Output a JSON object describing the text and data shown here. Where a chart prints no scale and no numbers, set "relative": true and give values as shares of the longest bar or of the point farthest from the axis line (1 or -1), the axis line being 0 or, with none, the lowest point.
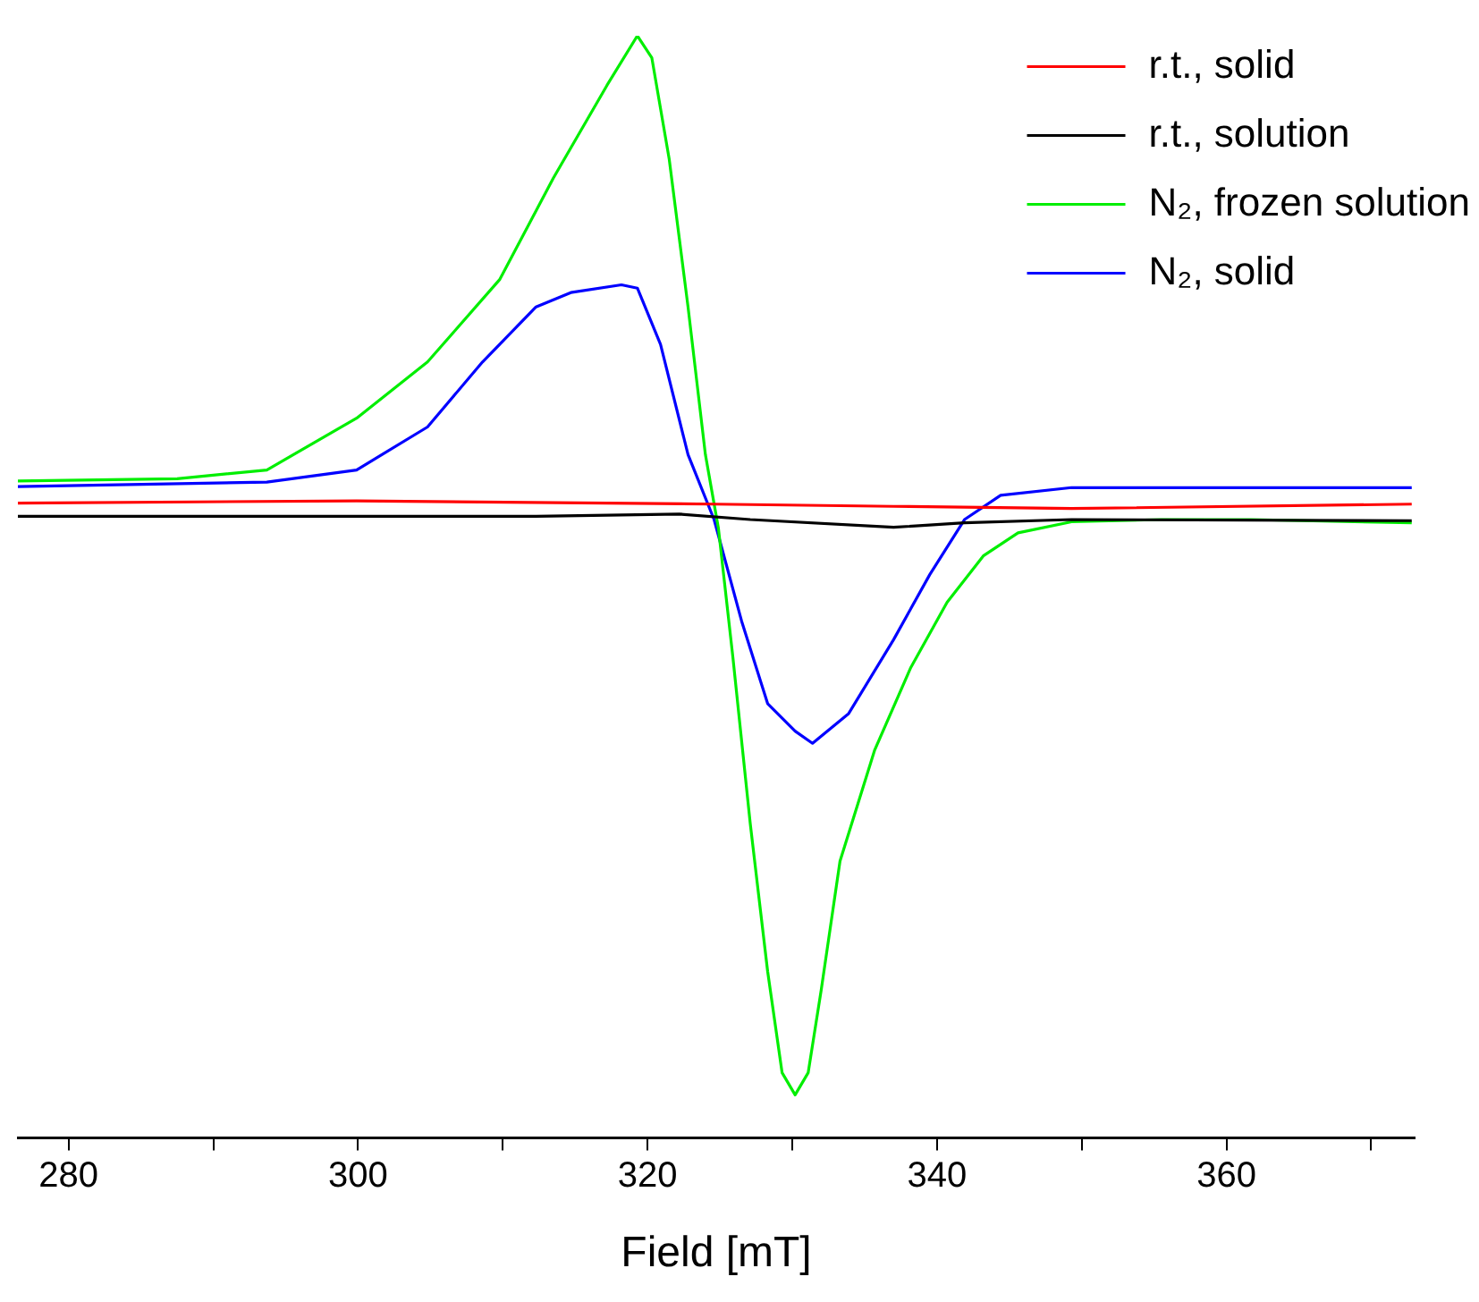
{
  "chart_data": {
    "type": "line",
    "xlabel": "Field [mT]",
    "relative": true,
    "xlim": [
      276.5,
      373
    ],
    "xticks": [
      280,
      {
        "value": 290,
        "label": null
      },
      300,
      {
        "value": 310,
        "label": null
      },
      320,
      {
        "value": 330,
        "label": null
      },
      340,
      {
        "value": 350,
        "label": null
      },
      360,
      {
        "value": 370,
        "label": null
      }
    ],
    "grid": false,
    "legend": "top right",
    "marker": "none",
    "line_style": "solid",
    "series": [
      {
        "name": "r.t., solid",
        "color": "#ff0000",
        "x": [
          276.5,
          299.9,
          324.6,
          337.0,
          349.3,
          372.8
        ],
        "values": [
          0.576,
          0.578,
          0.575,
          0.573,
          0.571,
          0.575
        ]
      },
      {
        "name": "r.t., solution",
        "color": "#000000",
        "x": [
          276.5,
          312.3,
          322.2,
          327.1,
          337.0,
          341.9,
          349.3,
          372.8
        ],
        "values": [
          0.564,
          0.564,
          0.566,
          0.561,
          0.554,
          0.558,
          0.561,
          0.56
        ]
      },
      {
        "name": "N₂, frozen solution",
        "color": "#00ee00",
        "x": [
          276.5,
          287.5,
          293.7,
          299.9,
          304.8,
          309.8,
          313.5,
          317.2,
          319.3,
          320.3,
          321.5,
          322.8,
          324.0,
          324.9,
          325.9,
          327.1,
          328.3,
          329.3,
          330.2,
          331.1,
          332.0,
          333.3,
          335.7,
          338.2,
          340.7,
          343.2,
          345.6,
          349.3,
          355.5,
          361.7,
          372.8
        ],
        "values": [
          0.596,
          0.598,
          0.606,
          0.653,
          0.704,
          0.779,
          0.871,
          0.955,
          1,
          0.98,
          0.888,
          0.754,
          0.62,
          0.553,
          0.436,
          0.285,
          0.151,
          0.059,
          0.039,
          0.059,
          0.134,
          0.251,
          0.352,
          0.427,
          0.486,
          0.528,
          0.549,
          0.559,
          0.561,
          0.561,
          0.558
        ]
      },
      {
        "name": "N₂, solid",
        "color": "#0000ff",
        "x": [
          276.5,
          293.7,
          299.9,
          304.8,
          308.6,
          312.3,
          314.7,
          318.2,
          319.3,
          320.9,
          322.8,
          324.6,
          326.5,
          328.3,
          330.2,
          331.4,
          333.9,
          337.0,
          339.5,
          341.9,
          344.4,
          349.3,
          361.7,
          372.8
        ],
        "values": [
          0.591,
          0.595,
          0.606,
          0.645,
          0.704,
          0.754,
          0.767,
          0.774,
          0.771,
          0.72,
          0.62,
          0.561,
          0.469,
          0.394,
          0.369,
          0.358,
          0.385,
          0.452,
          0.511,
          0.561,
          0.583,
          0.59,
          0.59,
          0.59
        ]
      }
    ]
  }
}
